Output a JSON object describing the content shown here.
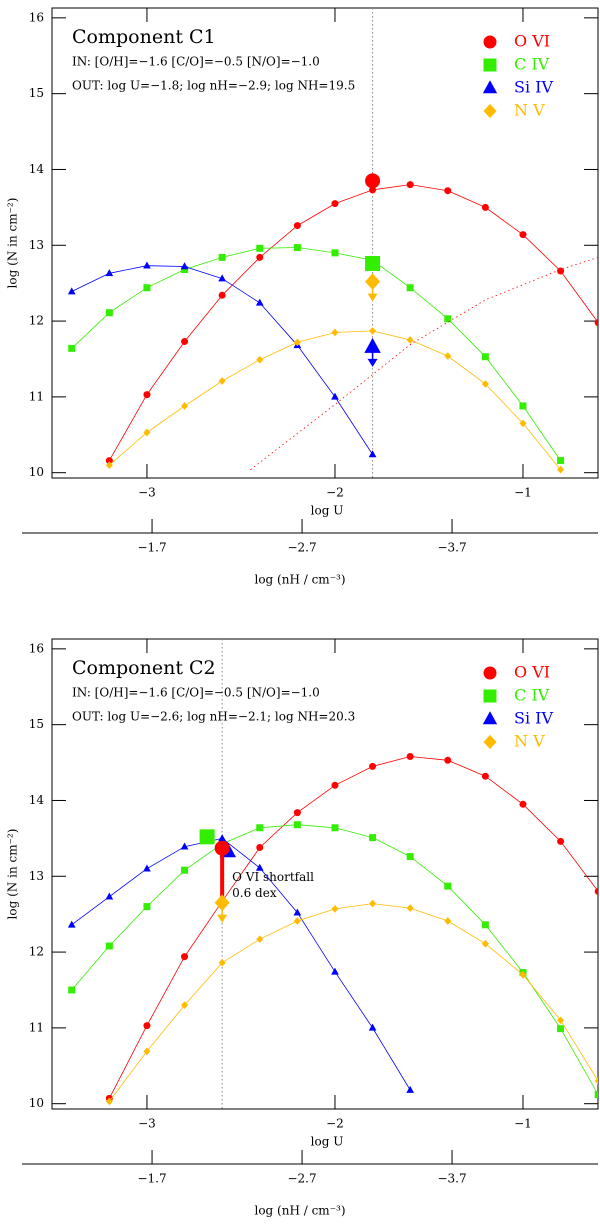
{
  "chart_data": [
    {
      "type": "line",
      "title": "Component C1",
      "in_text": "IN: [O/H]=−1.6 [C/O]=−0.5 [N/O]=−1.0",
      "out_text": "OUT: log U=−1.8; log nH=−2.9; log NH=19.5",
      "xlabel": "log U",
      "ylabel": "log (N in cm⁻²)",
      "x2label": "log (nH / cm⁻³)",
      "xlim": [
        -3.505,
        -0.601
      ],
      "ylim": [
        9.93,
        16.13
      ],
      "xticks": [
        {
          "value": -3,
          "label": "−3"
        },
        {
          "value": -2,
          "label": "−2"
        },
        {
          "value": -1,
          "label": "−1"
        }
      ],
      "yticks": [
        10,
        11,
        12,
        13,
        14,
        15,
        16
      ],
      "x2lim": [
        -1.033,
        -4.673
      ],
      "x2ticks": [
        {
          "value": -1.7,
          "label": "−1.7"
        },
        {
          "value": -2.7,
          "label": "−2.7"
        },
        {
          "value": -3.7,
          "label": "−3.7"
        }
      ],
      "vline": -1.8,
      "legend": "top-right",
      "x": [
        -3.4,
        -3.2,
        -3.0,
        -2.8,
        -2.6,
        -2.4,
        -2.2,
        -2.0,
        -1.8,
        -1.6,
        -1.4,
        -1.2,
        -1.0,
        -0.8,
        -0.6
      ],
      "series": [
        {
          "name": "O VI",
          "color": "#ff0000",
          "marker": "circle",
          "values": [
            null,
            10.16,
            11.03,
            11.73,
            12.34,
            12.84,
            13.26,
            13.55,
            13.73,
            13.8,
            13.72,
            13.5,
            13.14,
            12.66,
            11.98
          ]
        },
        {
          "name": "C IV",
          "color": "#33ee00",
          "marker": "square",
          "values": [
            11.64,
            12.11,
            12.44,
            12.68,
            12.84,
            12.96,
            12.97,
            12.9,
            12.8,
            12.44,
            12.03,
            11.53,
            10.88,
            10.16,
            null
          ]
        },
        {
          "name": "Si IV",
          "color": "#0000ff",
          "marker": "triangle",
          "values": [
            12.39,
            12.63,
            12.73,
            12.72,
            12.56,
            12.24,
            11.68,
            11.0,
            10.24,
            null,
            null,
            null,
            null,
            null,
            null
          ]
        },
        {
          "name": "N V",
          "color": "#ffbb00",
          "marker": "diamond",
          "values": [
            null,
            10.1,
            10.53,
            10.88,
            11.21,
            11.49,
            11.72,
            11.85,
            11.87,
            11.75,
            11.54,
            11.17,
            10.65,
            10.04,
            null
          ]
        },
        {
          "color": "#ff0000",
          "style": "dotted",
          "x": [
            -2.45,
            -2.0,
            -1.6,
            -1.2,
            -0.8,
            -0.6
          ],
          "values": [
            10.04,
            10.9,
            11.69,
            12.28,
            12.68,
            12.84
          ]
        }
      ],
      "observations": [
        {
          "x": -1.8,
          "value": 13.85,
          "color": "#ff0000",
          "marker": "circle"
        },
        {
          "x": -1.8,
          "value": 12.76,
          "color": "#33ee00",
          "marker": "square"
        },
        {
          "x": -1.8,
          "value": 12.52,
          "color": "#ffbb00",
          "marker": "diamond",
          "upper_limit": true
        },
        {
          "x": -1.8,
          "value": 11.66,
          "color": "#0000ff",
          "marker": "triangle",
          "upper_limit": true
        }
      ]
    },
    {
      "type": "line",
      "title": "Component C2",
      "in_text": "IN: [O/H]=−1.6 [C/O]=−0.5 [N/O]=−1.0",
      "out_text": "OUT: log U=−2.6; log nH=−2.1; log NH=20.3",
      "xlabel": "log U",
      "ylabel": "log (N in cm⁻²)",
      "x2label": "log (nH / cm⁻³)",
      "xlim": [
        -3.505,
        -0.601
      ],
      "ylim": [
        9.93,
        16.13
      ],
      "xticks": [
        {
          "value": -3,
          "label": "−3"
        },
        {
          "value": -2,
          "label": "−2"
        },
        {
          "value": -1,
          "label": "−1"
        }
      ],
      "yticks": [
        10,
        11,
        12,
        13,
        14,
        15,
        16
      ],
      "x2lim": [
        -1.033,
        -4.673
      ],
      "x2ticks": [
        {
          "value": -1.7,
          "label": "−1.7"
        },
        {
          "value": -2.7,
          "label": "−2.7"
        },
        {
          "value": -3.7,
          "label": "−3.7"
        }
      ],
      "vline": -2.6,
      "legend": "top-right",
      "annotation": [
        "O VI shortfall",
        "0.6 dex"
      ],
      "x": [
        -3.4,
        -3.2,
        -3.0,
        -2.8,
        -2.6,
        -2.4,
        -2.2,
        -2.0,
        -1.8,
        -1.6,
        -1.4,
        -1.2,
        -1.0,
        -0.8,
        -0.6
      ],
      "series": [
        {
          "name": "O VI",
          "color": "#ff0000",
          "marker": "circle",
          "values": [
            null,
            10.07,
            11.03,
            11.94,
            12.67,
            13.38,
            13.84,
            14.2,
            14.45,
            14.58,
            14.53,
            14.32,
            13.95,
            13.46,
            12.8
          ]
        },
        {
          "name": "C IV",
          "color": "#33ee00",
          "marker": "square",
          "values": [
            11.5,
            12.08,
            12.6,
            13.08,
            13.43,
            13.64,
            13.68,
            13.64,
            13.51,
            13.26,
            12.87,
            12.36,
            11.73,
            10.99,
            10.12
          ]
        },
        {
          "name": "Si IV",
          "color": "#0000ff",
          "marker": "triangle",
          "values": [
            12.36,
            12.73,
            13.1,
            13.39,
            13.5,
            13.11,
            12.52,
            11.74,
            11.0,
            10.18,
            null,
            null,
            null,
            null,
            null
          ]
        },
        {
          "name": "N V",
          "color": "#ffbb00",
          "marker": "diamond",
          "values": [
            null,
            10.03,
            10.69,
            11.3,
            11.86,
            12.17,
            12.41,
            12.57,
            12.64,
            12.58,
            12.41,
            12.11,
            11.7,
            11.1,
            10.3
          ]
        }
      ],
      "observations": [
        {
          "x": -2.68,
          "value": 13.52,
          "color": "#33ee00",
          "marker": "square"
        },
        {
          "x": -2.57,
          "value": 13.33,
          "color": "#0000ff",
          "marker": "triangle"
        },
        {
          "x": -2.6,
          "value": 13.37,
          "color": "#ff0000",
          "marker": "circle",
          "shortfall_to": "series.0.values.4"
        },
        {
          "x": -2.6,
          "value": 12.65,
          "color": "#ffbb00",
          "marker": "diamond",
          "upper_limit": true
        }
      ]
    }
  ]
}
